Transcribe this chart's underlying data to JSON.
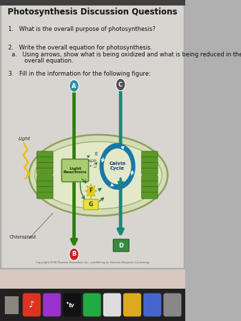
{
  "title": "Photosynthesis Discussion Questions",
  "q1": "1.   What is the overall purpose of photosynthesis?",
  "q2": "2.   Write the overall equation for photosynthesis.",
  "q2a": "a.   Using arrows, show what is being oxidized and what is being reduced in the",
  "q2a2": "       overall equation.",
  "q3": "3.   Fill in the information for the following figure:",
  "chloroplast_label": "Chloroplast",
  "light_label": "Light",
  "light_reactions_label": "Light\nReactions",
  "calvin_cycle_label": "Calvin\nCycle",
  "label_A": "A",
  "label_B": "B",
  "label_C": "C",
  "label_D": "D",
  "label_E": "E",
  "label_F": "F",
  "label_G": "G",
  "adp_label": "ADP",
  "pi_label": "+ Ⓟ",
  "bg_color": "#b0b0b0",
  "page_color": "#d8d5d0",
  "title_color": "#111111",
  "text_color": "#111111",
  "green_arrow_color": "#2d8010",
  "teal_arrow_color": "#1a8878",
  "blue_arrow_color": "#1060b8",
  "label_A_color": "#3090a0",
  "label_C_color": "#505050",
  "label_B_color": "#cc2020",
  "label_D_color": "#2a7030",
  "zigzag_color": "#e8c020",
  "copyright_text": "Copyright 2008 Pearson Education, Inc., publishing as Pearson Benjamin Cummings",
  "taskbar_color": "#1a1a1a",
  "taskbar_bg": "#3a3030"
}
